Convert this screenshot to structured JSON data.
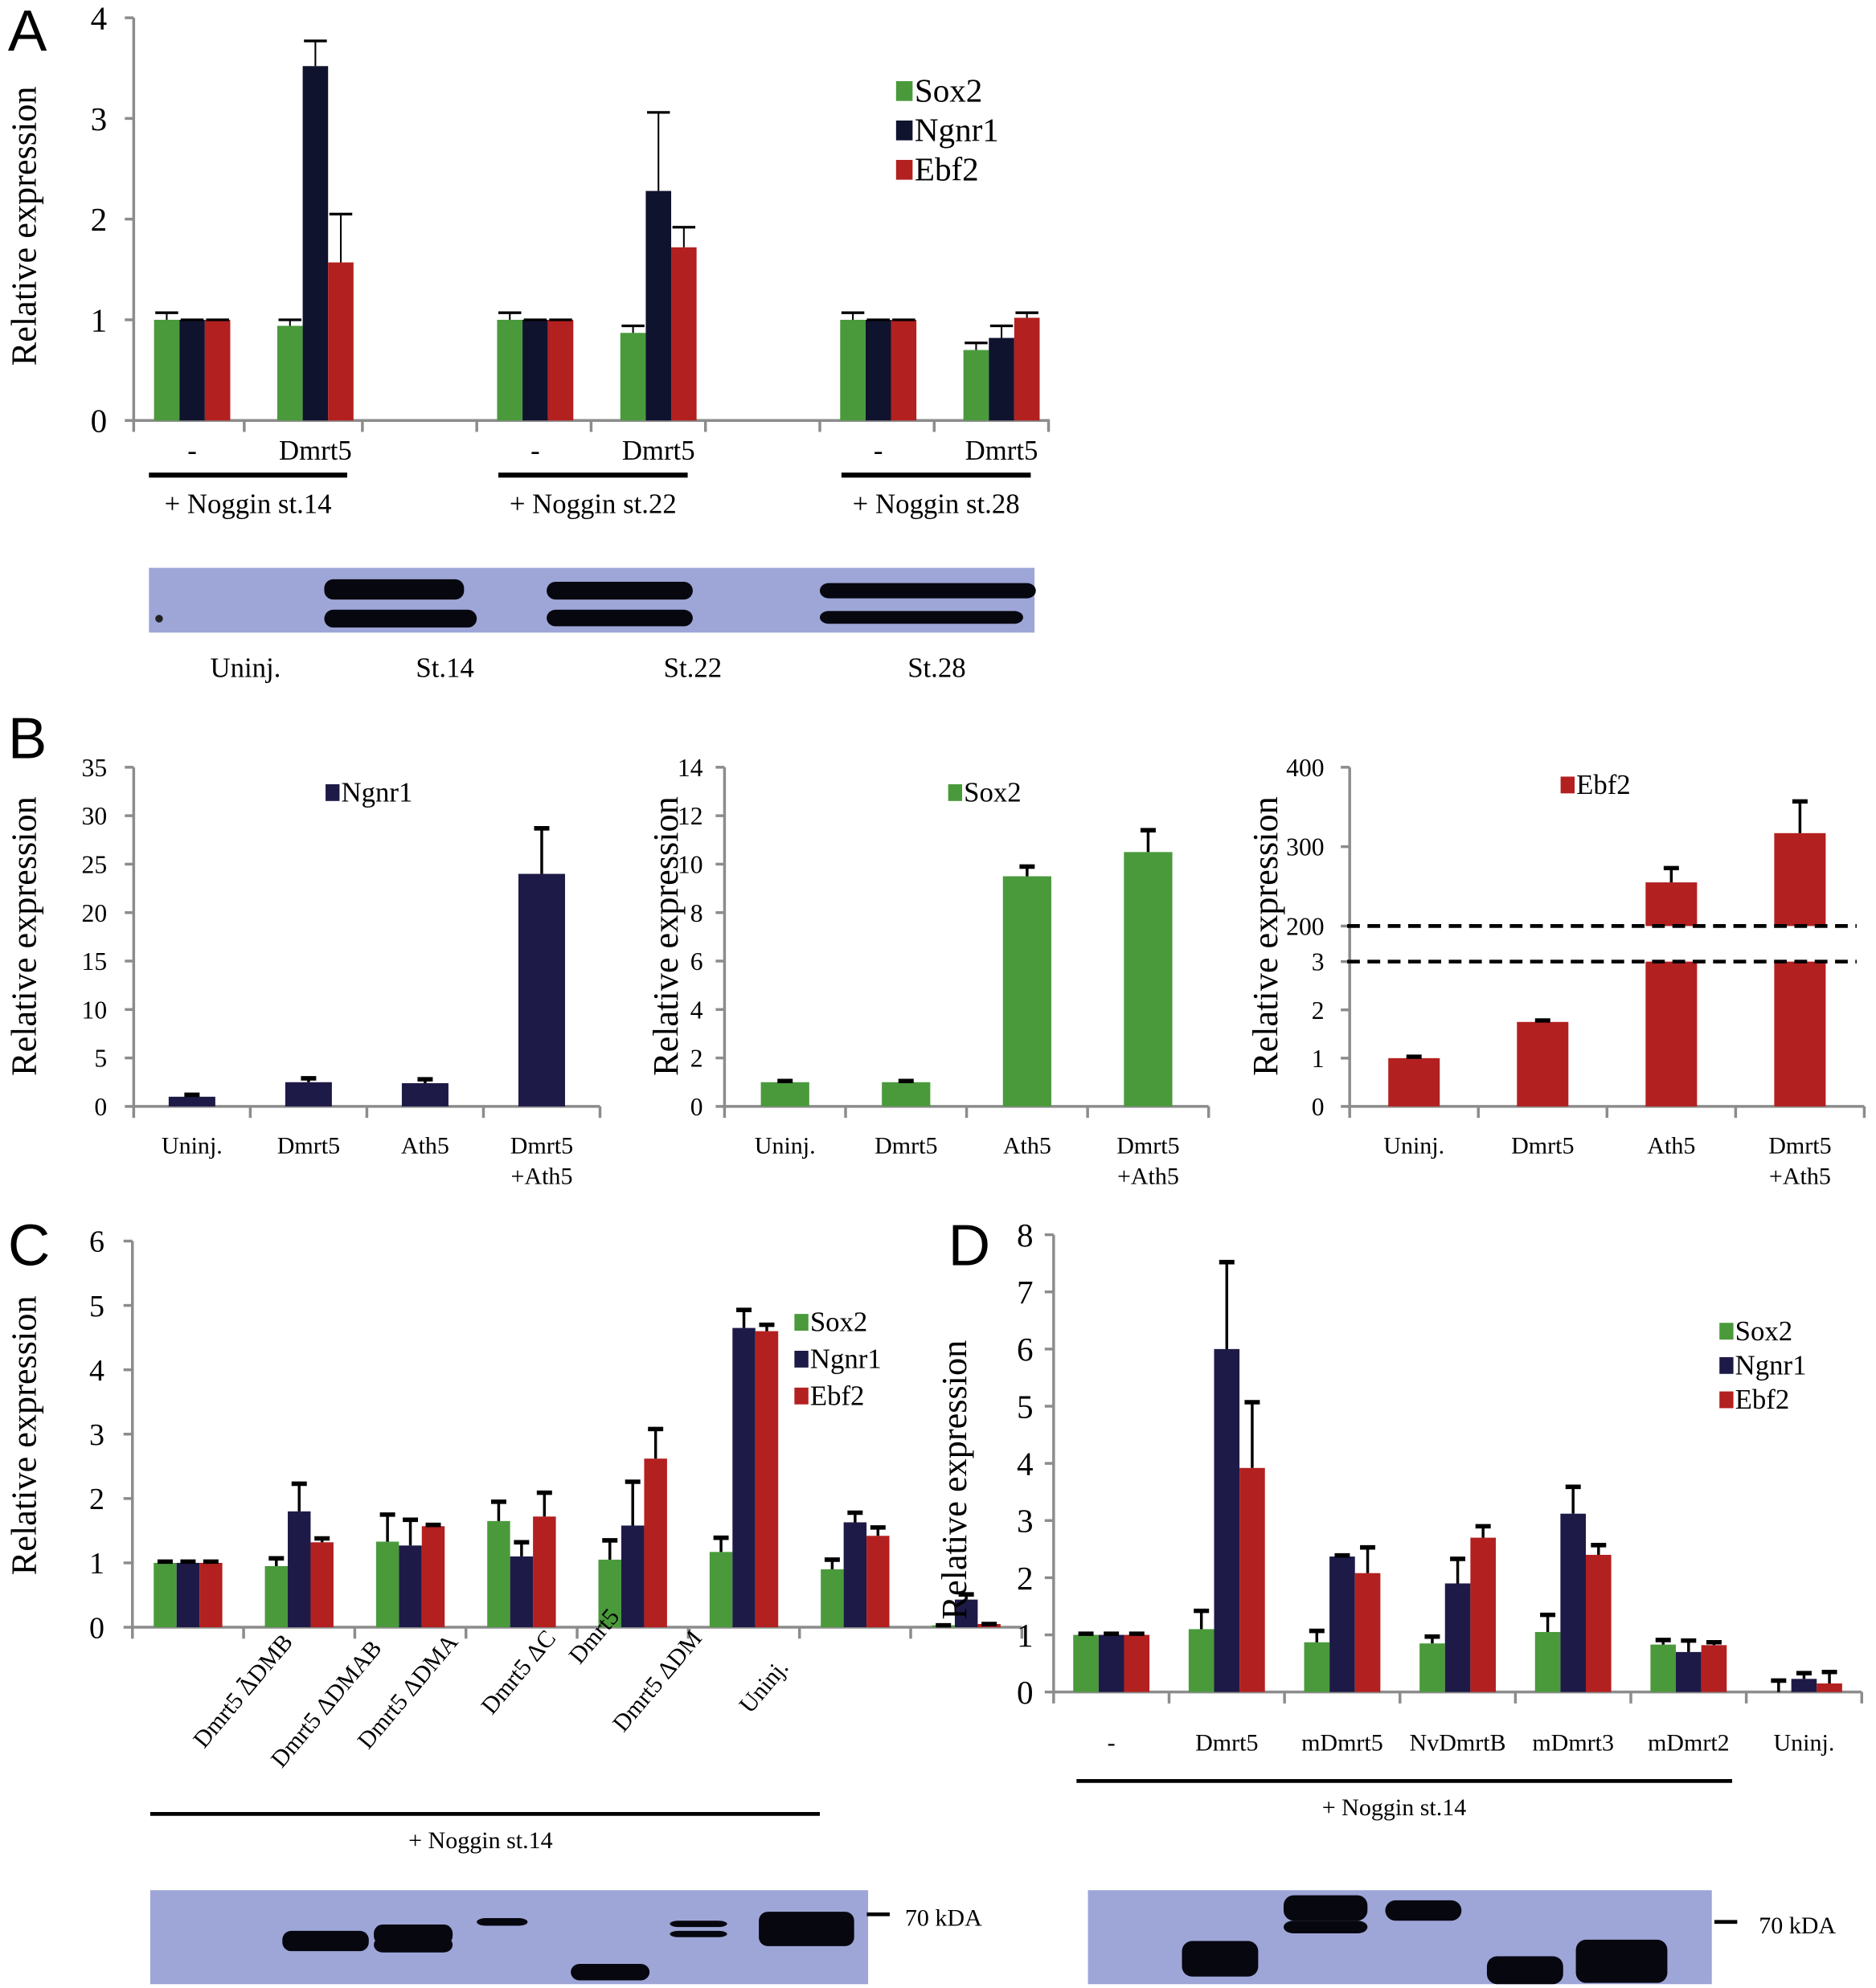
{
  "figure": {
    "panel_letters": [
      "A",
      "B",
      "C",
      "D"
    ],
    "colors": {
      "Sox2": "#4a9a3c",
      "Ngnr1": "#1e1a47",
      "Ebf2": "#b32020",
      "Ngnr1_A": "#10132e",
      "axis": "#8c8c8c",
      "blot": "#9ea6d8"
    }
  },
  "chart_data": [
    {
      "id": "A",
      "type": "bar",
      "title": "",
      "ylabel": "Relative expression",
      "xlabel": "",
      "ylim": [
        0,
        4
      ],
      "yticks": [
        "0",
        "1",
        "2",
        "3",
        "4"
      ],
      "legend": {
        "entries": [
          "Sox2",
          "Ngnr1",
          "Ebf2"
        ],
        "placement": "top-right"
      },
      "categories": [
        "-",
        "Dmrt5",
        "-",
        "Dmrt5",
        "-",
        "Dmrt5"
      ],
      "group_labels": [
        "+ Noggin st.14",
        "+ Noggin st.22",
        "+ Noggin st.28"
      ],
      "series": [
        {
          "name": "Sox2",
          "values": [
            1.0,
            0.94,
            1.0,
            0.87,
            1.0,
            0.7
          ],
          "errors": [
            0.07,
            0.06,
            0.07,
            0.07,
            0.07,
            0.07
          ]
        },
        {
          "name": "Ngnr1",
          "values": [
            1.0,
            3.52,
            1.0,
            2.28,
            1.0,
            0.82
          ],
          "errors": [
            0.0,
            0.25,
            0.0,
            0.78,
            0.0,
            0.12
          ]
        },
        {
          "name": "Ebf2",
          "values": [
            1.0,
            1.57,
            1.0,
            1.72,
            1.0,
            1.02
          ],
          "errors": [
            0.0,
            0.48,
            0.0,
            0.2,
            0.0,
            0.05
          ]
        }
      ],
      "blot": {
        "lane_labels": [
          "Uninj.",
          "St.14",
          "St.22",
          "St.28"
        ]
      }
    },
    {
      "id": "B1",
      "type": "bar",
      "ylabel": "Relative expression",
      "ylim": [
        0,
        35
      ],
      "yticks": [
        "0",
        "5",
        "10",
        "15",
        "20",
        "25",
        "30",
        "35"
      ],
      "legend": {
        "entries": [
          "Ngnr1"
        ],
        "placement": "top-center"
      },
      "categories": [
        "Uninj.",
        "Dmrt5",
        "Ath5",
        "Dmrt5\n+Ath5"
      ],
      "series": [
        {
          "name": "Ngnr1",
          "values": [
            1.0,
            2.5,
            2.4,
            24.0
          ],
          "errors": [
            0.2,
            0.4,
            0.4,
            4.7
          ]
        }
      ]
    },
    {
      "id": "B2",
      "type": "bar",
      "ylabel": "Relative expression",
      "ylim": [
        0,
        14
      ],
      "yticks": [
        "0",
        "2",
        "4",
        "6",
        "8",
        "10",
        "12",
        "14"
      ],
      "legend": {
        "entries": [
          "Sox2"
        ],
        "placement": "top-center"
      },
      "categories": [
        "Uninj.",
        "Dmrt5",
        "Ath5",
        "Dmrt5\n+Ath5"
      ],
      "series": [
        {
          "name": "Sox2",
          "values": [
            1.0,
            1.0,
            9.5,
            10.5
          ],
          "errors": [
            0.05,
            0.05,
            0.4,
            0.9
          ]
        }
      ]
    },
    {
      "id": "B3",
      "type": "bar",
      "ylabel": "Relative expression",
      "ylim_lower": [
        0,
        3
      ],
      "ylim_upper": [
        200,
        400
      ],
      "yticks_lower": [
        "0",
        "1",
        "2",
        "3"
      ],
      "yticks_upper": [
        "200",
        "300",
        "400"
      ],
      "axis_break": "between 3 and 200 (dashed lines)",
      "legend": {
        "entries": [
          "Ebf2"
        ],
        "placement": "top-center"
      },
      "categories": [
        "Uninj.",
        "Dmrt5",
        "Ath5",
        "Dmrt5\n+Ath5"
      ],
      "series": [
        {
          "name": "Ebf2",
          "values": [
            1.0,
            1.75,
            255,
            317
          ],
          "errors": [
            0.03,
            0.03,
            18,
            40
          ]
        }
      ]
    },
    {
      "id": "C",
      "type": "bar",
      "ylabel": "Relative expression",
      "ylim": [
        0,
        6
      ],
      "yticks": [
        "0",
        "1",
        "2",
        "3",
        "4",
        "5",
        "6"
      ],
      "legend": {
        "entries": [
          "Sox2",
          "Ngnr1",
          "Ebf2"
        ],
        "placement": "top-right"
      },
      "categories": [
        "-",
        "Dmrt5 ΔDMB",
        "Dmrt5 ΔDMAB",
        "Dmrt5 ΔDMA",
        "Dmrt5     ΔC",
        "Dmrt5",
        "Dmrt5 ΔDM",
        "Uninj."
      ],
      "group_label": "+ Noggin st.14",
      "series": [
        {
          "name": "Sox2",
          "values": [
            1.0,
            0.95,
            1.33,
            1.65,
            1.05,
            1.17,
            0.9,
            0.03
          ],
          "errors": [
            0.02,
            0.12,
            0.42,
            0.3,
            0.3,
            0.22,
            0.15,
            0.0
          ]
        },
        {
          "name": "Ngnr1",
          "values": [
            1.0,
            1.8,
            1.27,
            1.1,
            1.58,
            4.65,
            1.63,
            0.43
          ],
          "errors": [
            0.02,
            0.43,
            0.4,
            0.22,
            0.68,
            0.28,
            0.15,
            0.08
          ]
        },
        {
          "name": "Ebf2",
          "values": [
            1.0,
            1.32,
            1.57,
            1.72,
            2.62,
            4.6,
            1.42,
            0.05
          ],
          "errors": [
            0.02,
            0.06,
            0.02,
            0.37,
            0.46,
            0.1,
            0.13,
            0.0
          ]
        }
      ],
      "blot": {
        "marker_label": "70 kDA"
      }
    },
    {
      "id": "D",
      "type": "bar",
      "ylabel": "Relative expression",
      "ylim": [
        0,
        8
      ],
      "yticks": [
        "0",
        "1",
        "2",
        "3",
        "4",
        "5",
        "6",
        "7",
        "8"
      ],
      "legend": {
        "entries": [
          "Sox2",
          "Ngnr1",
          "Ebf2"
        ],
        "placement": "top-right"
      },
      "categories": [
        "-",
        "Dmrt5",
        "mDmrt5",
        "NvDmrtB",
        "mDmrt3",
        "mDmrt2",
        "Uninj."
      ],
      "group_label": "+ Noggin st.14",
      "series": [
        {
          "name": "Sox2",
          "values": [
            1.0,
            1.1,
            0.87,
            0.85,
            1.05,
            0.83,
            0.0
          ],
          "errors": [
            0.02,
            0.32,
            0.2,
            0.12,
            0.3,
            0.08,
            0.2
          ]
        },
        {
          "name": "Ngnr1",
          "values": [
            1.0,
            6.0,
            2.37,
            1.9,
            3.12,
            0.7,
            0.23
          ],
          "errors": [
            0.02,
            1.52,
            0.02,
            0.43,
            0.47,
            0.2,
            0.1
          ]
        },
        {
          "name": "Ebf2",
          "values": [
            1.0,
            3.92,
            2.08,
            2.7,
            2.4,
            0.82,
            0.15
          ],
          "errors": [
            0.02,
            1.15,
            0.45,
            0.2,
            0.17,
            0.05,
            0.2
          ]
        }
      ],
      "blot": {
        "marker_label": "70 kDA"
      }
    }
  ]
}
